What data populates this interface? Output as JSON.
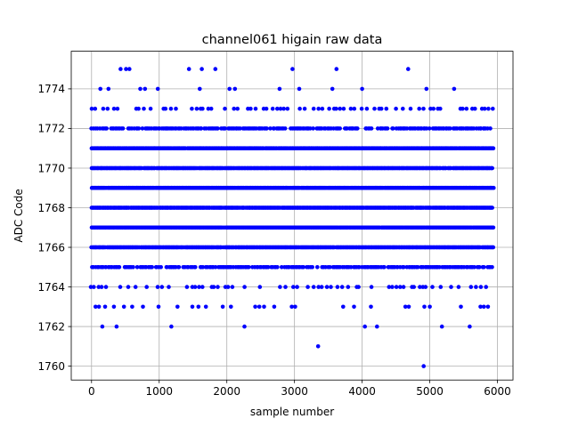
{
  "chart_data": {
    "type": "scatter",
    "title": "channel061 higain raw data",
    "xlabel": "sample number",
    "ylabel": "ADC Code",
    "xlim": [
      -300,
      6230
    ],
    "ylim": [
      1759.3,
      1775.9
    ],
    "xticks": [
      0,
      1000,
      2000,
      3000,
      4000,
      5000,
      6000
    ],
    "yticks": [
      1760,
      1762,
      1764,
      1766,
      1768,
      1770,
      1772,
      1774
    ],
    "grid": true,
    "marker_color": "#0000ff",
    "n_samples": 5940,
    "level_density": [
      {
        "y": 1766,
        "density": "dense"
      },
      {
        "y": 1767,
        "density": "dense"
      },
      {
        "y": 1768,
        "density": "dense"
      },
      {
        "y": 1769,
        "density": "dense"
      },
      {
        "y": 1770,
        "density": "dense"
      },
      {
        "y": 1771,
        "density": "dense"
      },
      {
        "y": 1765,
        "density": "medium"
      },
      {
        "y": 1772,
        "density": "medium"
      },
      {
        "y": 1764,
        "density": "sparse"
      },
      {
        "y": 1773,
        "density": "sparse"
      }
    ],
    "points": [
      {
        "x": 130,
        "y": 1774
      },
      {
        "x": 250,
        "y": 1774
      },
      {
        "x": 430,
        "y": 1775
      },
      {
        "x": 510,
        "y": 1775
      },
      {
        "x": 560,
        "y": 1775
      },
      {
        "x": 720,
        "y": 1774
      },
      {
        "x": 790,
        "y": 1774
      },
      {
        "x": 980,
        "y": 1774
      },
      {
        "x": 1440,
        "y": 1775
      },
      {
        "x": 1600,
        "y": 1774
      },
      {
        "x": 1630,
        "y": 1775
      },
      {
        "x": 1830,
        "y": 1775
      },
      {
        "x": 2040,
        "y": 1774
      },
      {
        "x": 2120,
        "y": 1774
      },
      {
        "x": 2780,
        "y": 1774
      },
      {
        "x": 2970,
        "y": 1775
      },
      {
        "x": 3070,
        "y": 1774
      },
      {
        "x": 3560,
        "y": 1774
      },
      {
        "x": 3620,
        "y": 1775
      },
      {
        "x": 4000,
        "y": 1774
      },
      {
        "x": 4680,
        "y": 1775
      },
      {
        "x": 4950,
        "y": 1774
      },
      {
        "x": 5360,
        "y": 1774
      },
      {
        "x": 60,
        "y": 1763
      },
      {
        "x": 110,
        "y": 1763
      },
      {
        "x": 200,
        "y": 1763
      },
      {
        "x": 330,
        "y": 1763
      },
      {
        "x": 480,
        "y": 1763
      },
      {
        "x": 600,
        "y": 1763
      },
      {
        "x": 760,
        "y": 1763
      },
      {
        "x": 990,
        "y": 1763
      },
      {
        "x": 1270,
        "y": 1763
      },
      {
        "x": 1490,
        "y": 1763
      },
      {
        "x": 1580,
        "y": 1763
      },
      {
        "x": 1690,
        "y": 1763
      },
      {
        "x": 1940,
        "y": 1763
      },
      {
        "x": 2060,
        "y": 1763
      },
      {
        "x": 2420,
        "y": 1763
      },
      {
        "x": 2480,
        "y": 1763
      },
      {
        "x": 2550,
        "y": 1763
      },
      {
        "x": 2700,
        "y": 1763
      },
      {
        "x": 2960,
        "y": 1763
      },
      {
        "x": 3010,
        "y": 1763
      },
      {
        "x": 3720,
        "y": 1763
      },
      {
        "x": 3880,
        "y": 1763
      },
      {
        "x": 4130,
        "y": 1763
      },
      {
        "x": 4640,
        "y": 1763
      },
      {
        "x": 4690,
        "y": 1763
      },
      {
        "x": 4920,
        "y": 1763
      },
      {
        "x": 5000,
        "y": 1763
      },
      {
        "x": 5460,
        "y": 1763
      },
      {
        "x": 5750,
        "y": 1763
      },
      {
        "x": 5800,
        "y": 1763
      },
      {
        "x": 5860,
        "y": 1763
      },
      {
        "x": 160,
        "y": 1762
      },
      {
        "x": 370,
        "y": 1762
      },
      {
        "x": 1180,
        "y": 1762
      },
      {
        "x": 2260,
        "y": 1762
      },
      {
        "x": 4040,
        "y": 1762
      },
      {
        "x": 4220,
        "y": 1762
      },
      {
        "x": 5180,
        "y": 1762
      },
      {
        "x": 5590,
        "y": 1762
      },
      {
        "x": 3350,
        "y": 1761
      },
      {
        "x": 4910,
        "y": 1760
      }
    ]
  }
}
